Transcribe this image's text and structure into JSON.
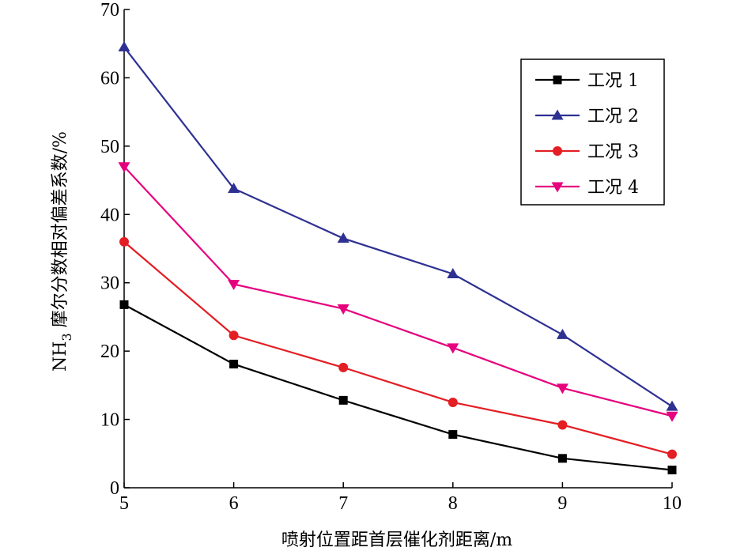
{
  "chart_data": {
    "type": "line",
    "title": "",
    "xlabel": "喷射位置距首层催化剂距离/m",
    "ylabel": {
      "prefix": "NH",
      "subscript": "3",
      "suffix": " 摩尔分数相对偏差系数/%"
    },
    "x": [
      5,
      6,
      7,
      8,
      9,
      10
    ],
    "xlim": [
      5,
      10
    ],
    "ylim": [
      0,
      70
    ],
    "xticks": [
      "5",
      "6",
      "7",
      "8",
      "9",
      "10"
    ],
    "yticks": [
      "0",
      "10",
      "20",
      "30",
      "40",
      "50",
      "60",
      "70"
    ],
    "grid": false,
    "legend_position": "top-right",
    "series": [
      {
        "name": "工况 1",
        "values": [
          26.8,
          18.1,
          12.8,
          7.8,
          4.3,
          2.6
        ],
        "color": "#000000",
        "marker": "square"
      },
      {
        "name": "工况 2",
        "values": [
          64.5,
          43.8,
          36.5,
          31.3,
          22.4,
          11.9
        ],
        "color": "#2e3192",
        "marker": "triangle-up"
      },
      {
        "name": "工况 3",
        "values": [
          36.0,
          22.3,
          17.6,
          12.5,
          9.2,
          4.9
        ],
        "color": "#e31e24",
        "marker": "circle"
      },
      {
        "name": "工况 4",
        "values": [
          47.0,
          29.8,
          26.2,
          20.5,
          14.6,
          10.5
        ],
        "color": "#e6007e",
        "marker": "triangle-down"
      }
    ]
  }
}
